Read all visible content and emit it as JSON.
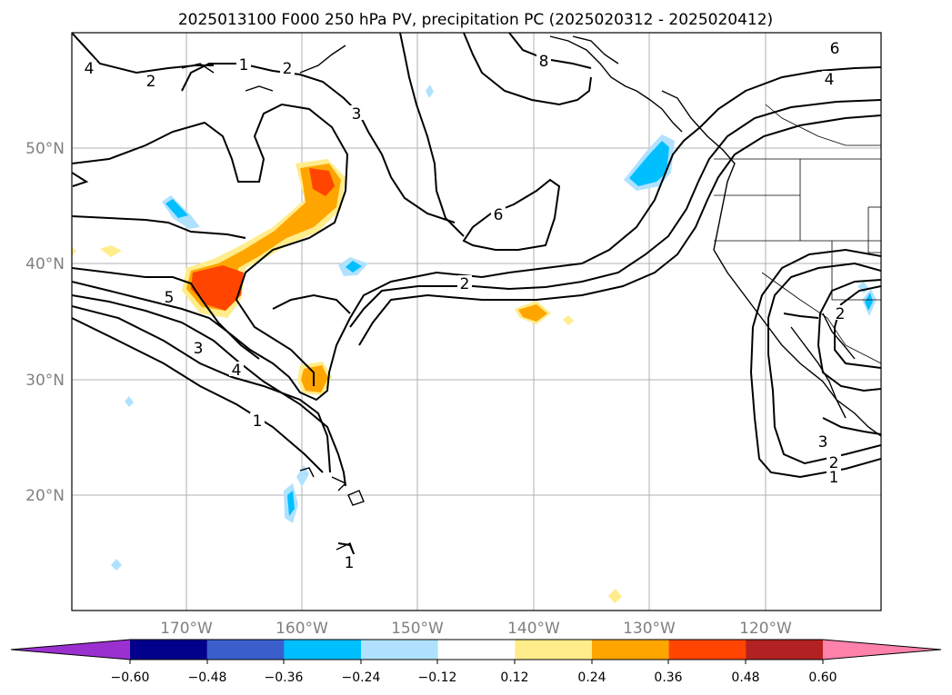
{
  "title": "2025013100 F000 250 hPa PV, precipitation PC (2025020312 - 2025020412)",
  "lon_labels": [
    "170°W",
    "160°W",
    "150°W",
    "140°W",
    "130°W",
    "120°W"
  ],
  "lat_labels": [
    "50°N",
    "40°N",
    "30°N",
    "20°N"
  ],
  "contour_labels": [
    "1",
    "2",
    "4",
    "2",
    "3",
    "8",
    "6",
    "4",
    "6",
    "2",
    "5",
    "3",
    "4",
    "1",
    "2",
    "3",
    "2",
    "1",
    "1"
  ],
  "colorbar": {
    "colors": [
      "#9b30d0",
      "#00008b",
      "#3a5fcd",
      "#00bfff",
      "#b0e2ff",
      "#ffffff",
      "#ffec8b",
      "#ffa500",
      "#ff4500",
      "#b22222",
      "#ff82ab"
    ],
    "ticks": [
      "−0.60",
      "−0.48",
      "−0.36",
      "−0.24",
      "−0.12",
      "0.12",
      "0.24",
      "0.36",
      "0.48",
      "0.60"
    ]
  }
}
